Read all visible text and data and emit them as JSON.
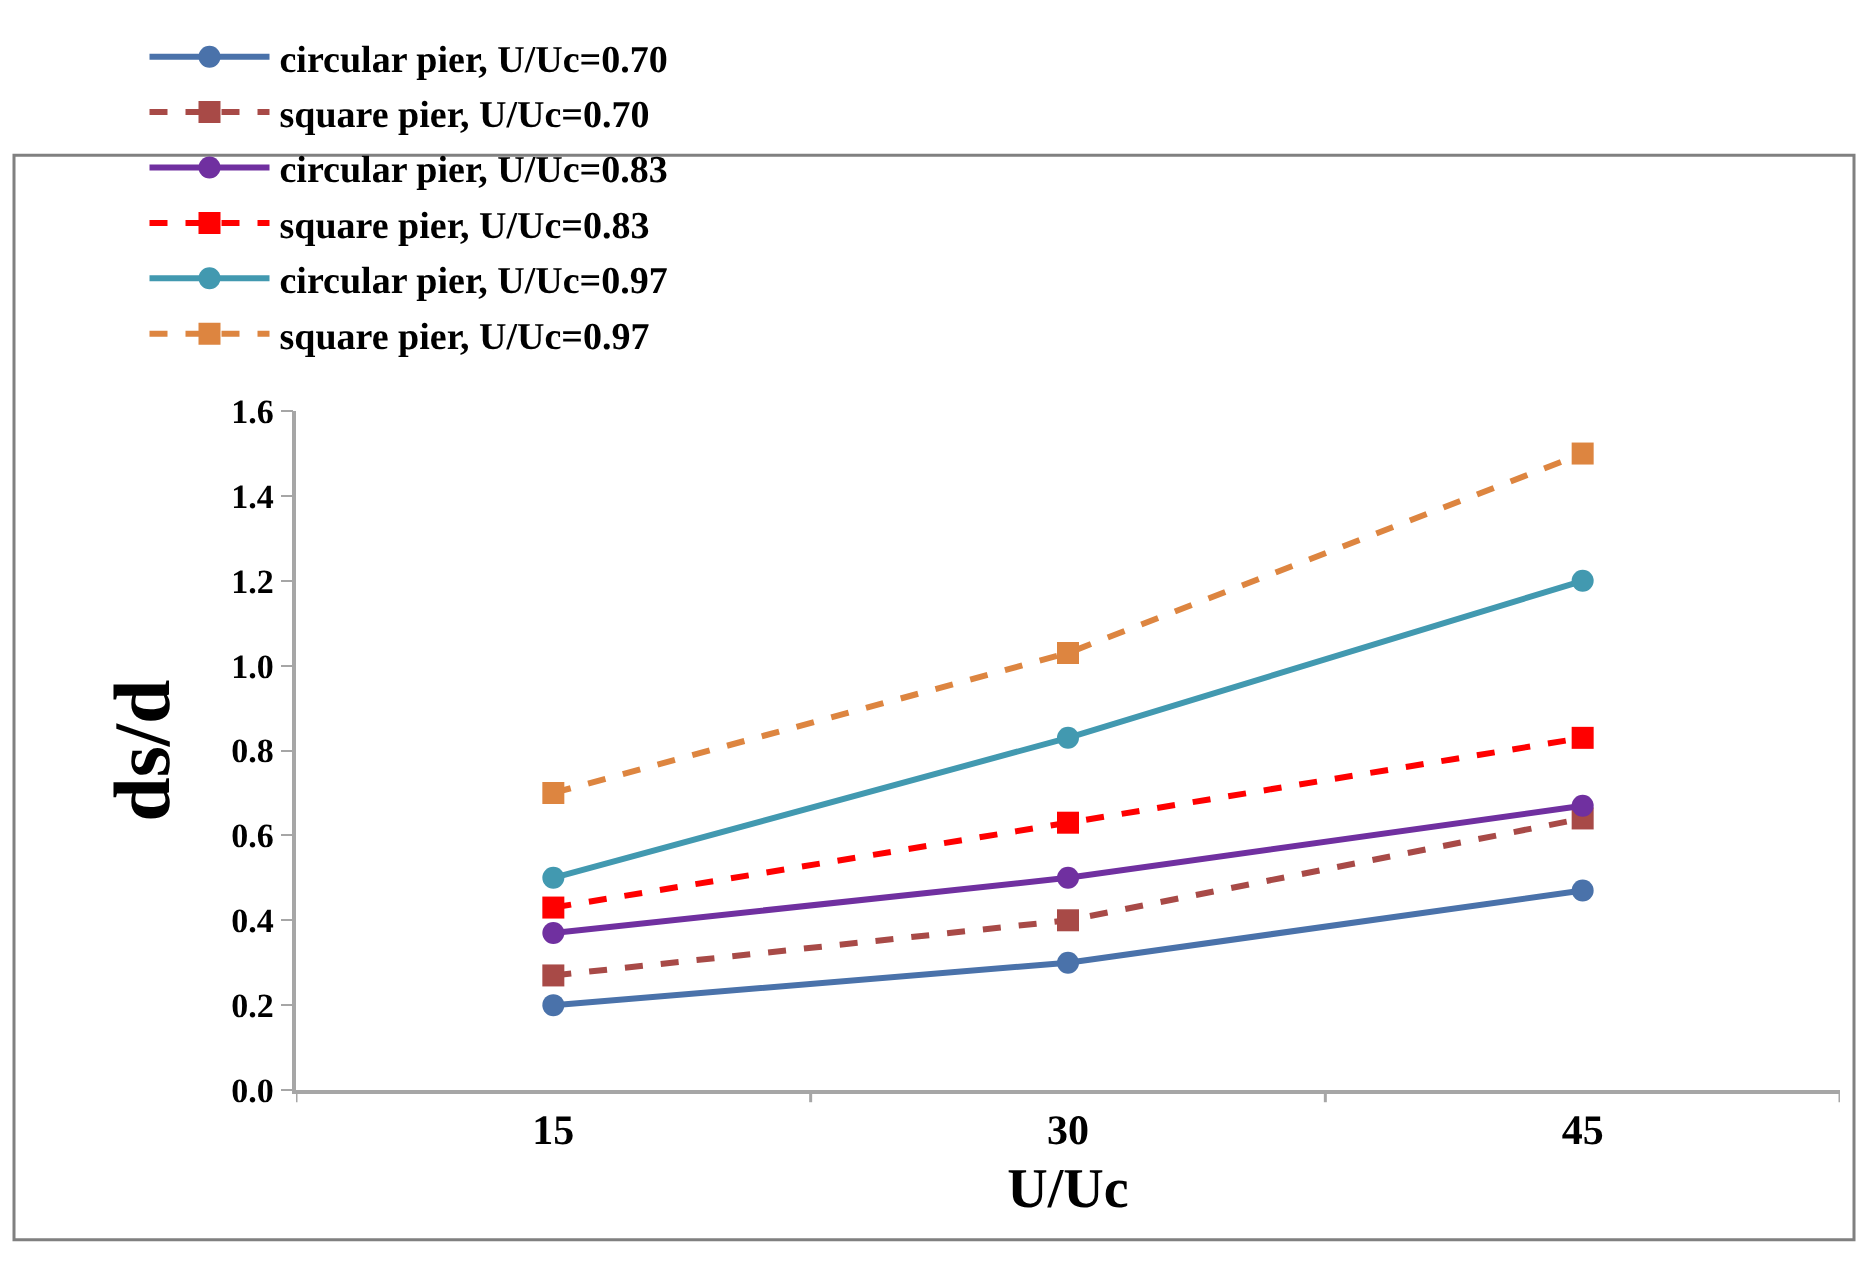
{
  "chart_data": {
    "type": "line",
    "xlabel": "U/Uc",
    "ylabel": "ds/d",
    "categories": [
      "15",
      "30",
      "45"
    ],
    "ylim": [
      0,
      1.6
    ],
    "yticks": [
      {
        "value": 0,
        "label": "0.0"
      },
      {
        "value": 0.2,
        "label": "0.2"
      },
      {
        "value": 0.4,
        "label": "0.4"
      },
      {
        "value": 0.6,
        "label": "0.6"
      },
      {
        "value": 0.8,
        "label": "0.8"
      },
      {
        "value": 1.0,
        "label": "1.0"
      },
      {
        "value": 1.2,
        "label": "1.2"
      },
      {
        "value": 1.4,
        "label": "1.4"
      },
      {
        "value": 1.6,
        "label": "1.6"
      }
    ],
    "legend": "top",
    "series": [
      {
        "name": "circular pier, U/Uc=0.70",
        "color": "#4a72aa",
        "marker": "circle",
        "line_style": "solid",
        "values": [
          0.2,
          0.3,
          0.47
        ]
      },
      {
        "name": "square pier, U/Uc=0.70",
        "color": "#a84a47",
        "marker": "square",
        "line_style": "dashed",
        "values": [
          0.27,
          0.4,
          0.64
        ]
      },
      {
        "name": "circular pier, U/Uc=0.83",
        "color": "#7030a0",
        "marker": "circle",
        "line_style": "solid",
        "values": [
          0.37,
          0.5,
          0.67
        ]
      },
      {
        "name": "square pier, U/Uc=0.83",
        "color": "#ff0000",
        "marker": "square",
        "line_style": "dashed",
        "values": [
          0.43,
          0.63,
          0.83
        ]
      },
      {
        "name": "circular pier, U/Uc=0.97",
        "color": "#4299b0",
        "marker": "circle",
        "line_style": "solid",
        "values": [
          0.5,
          0.83,
          1.2
        ]
      },
      {
        "name": "square pier, U/Uc=0.97",
        "color": "#dd8540",
        "marker": "square",
        "line_style": "dashed",
        "values": [
          0.7,
          1.03,
          1.5
        ]
      }
    ]
  }
}
